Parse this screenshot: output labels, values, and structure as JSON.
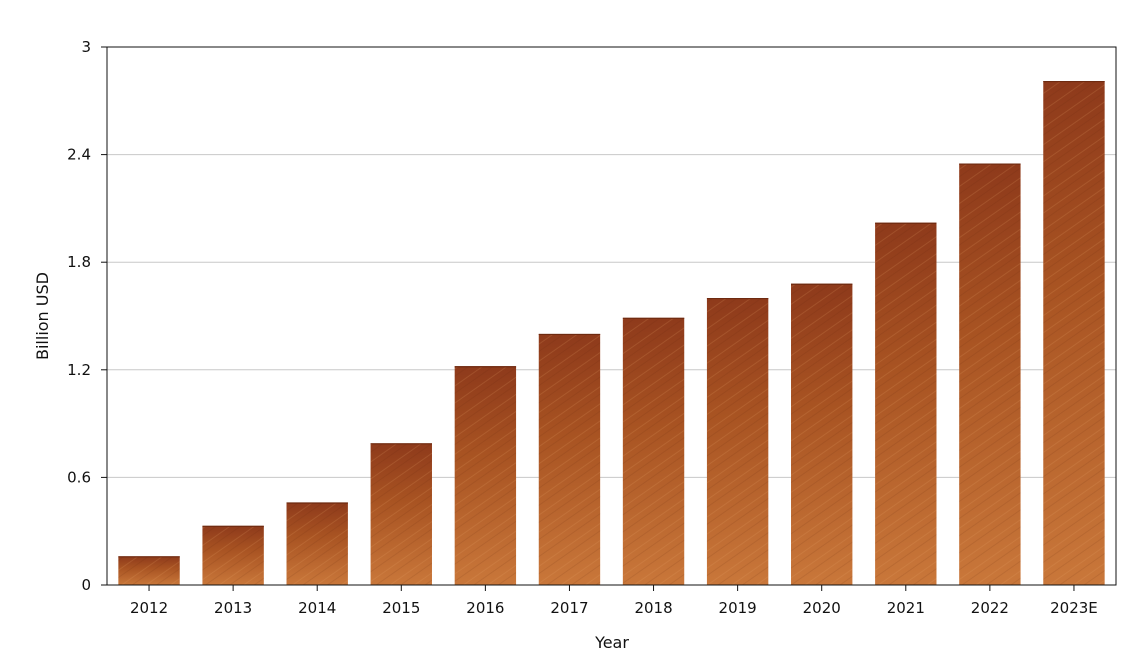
{
  "chart_data": {
    "type": "bar",
    "title": "",
    "xlabel": "Year",
    "ylabel": "Billion USD",
    "categories": [
      "2012",
      "2013",
      "2014",
      "2015",
      "2016",
      "2017",
      "2018",
      "2019",
      "2020",
      "2021",
      "2022",
      "2023E"
    ],
    "values": [
      0.16,
      0.33,
      0.46,
      0.79,
      1.22,
      1.4,
      1.49,
      1.6,
      1.68,
      2.02,
      2.35,
      2.81
    ],
    "ylim": [
      0,
      3
    ],
    "yticks": [
      "0",
      "0.6",
      "1.2",
      "1.8",
      "2.4",
      "3"
    ],
    "grid": "horizontal",
    "legend": "none",
    "colors": {
      "bar_light": "#c9773a",
      "bar_mid": "#a85322",
      "bar_dark": "#8e3a1b",
      "grid": "#c8c8c8",
      "axis": "#111111"
    }
  }
}
